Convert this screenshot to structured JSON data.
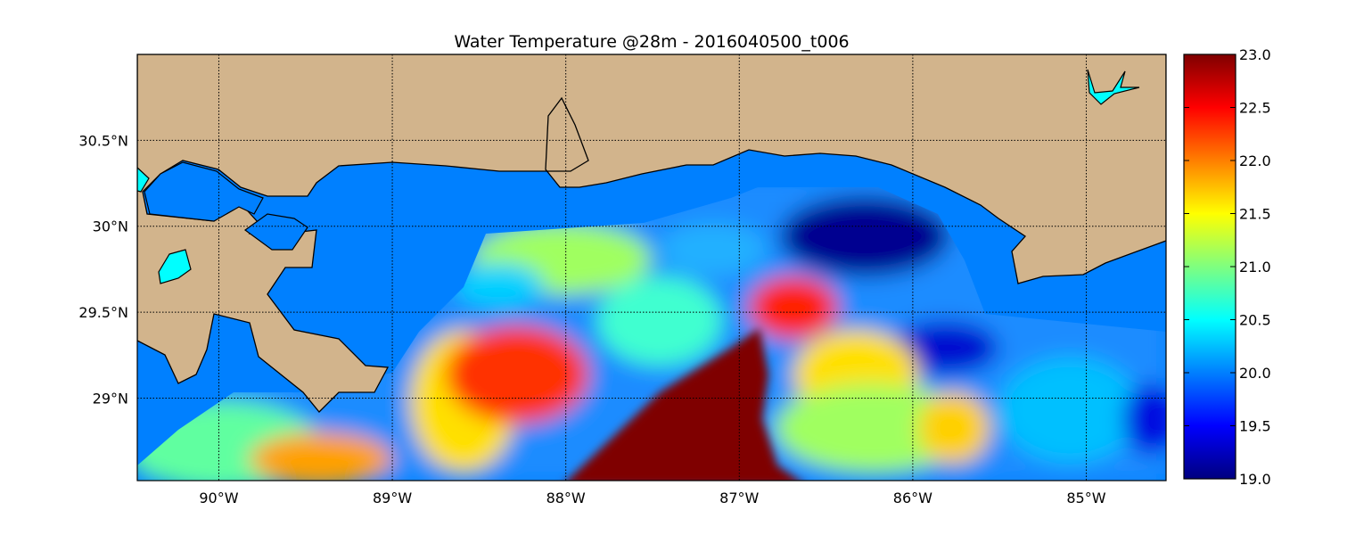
{
  "chart_data": {
    "type": "heatmap",
    "title": "Water Temperature @28m - 2016040500_t006",
    "variable": "Water Temperature",
    "depth": "28m",
    "run": "2016040500_t006",
    "x_ticks": [
      {
        "value": -90,
        "label": "90°W"
      },
      {
        "value": -89,
        "label": "89°W"
      },
      {
        "value": -88,
        "label": "88°W"
      },
      {
        "value": -87,
        "label": "87°W"
      },
      {
        "value": -86,
        "label": "86°W"
      },
      {
        "value": -85,
        "label": "85°W"
      }
    ],
    "y_ticks": [
      {
        "value": 30.5,
        "label": "30.5°N"
      },
      {
        "value": 30.0,
        "label": "30°N"
      },
      {
        "value": 29.5,
        "label": "29.5°N"
      },
      {
        "value": 29.0,
        "label": "29°N"
      }
    ],
    "xlim": [
      -90.47,
      -84.54
    ],
    "ylim": [
      28.52,
      31.0
    ],
    "grid": true,
    "colorbar": {
      "colormap": "jet",
      "range": [
        19.0,
        23.0
      ],
      "ticks": [
        "19.0",
        "19.5",
        "20.0",
        "20.5",
        "21.0",
        "21.5",
        "22.0",
        "22.5",
        "23.0"
      ],
      "placement": "right"
    },
    "regions": [
      {
        "name": "warm core",
        "approx_lon": -87.0,
        "approx_lat": 28.8,
        "value": 23.0
      },
      {
        "name": "cold pool",
        "approx_lon": -86.2,
        "approx_lat": 29.9,
        "value": 19.0
      }
    ]
  },
  "colors": {
    "land": "#d2b48c",
    "water": "#0080ff",
    "lake": "#00ffff"
  }
}
